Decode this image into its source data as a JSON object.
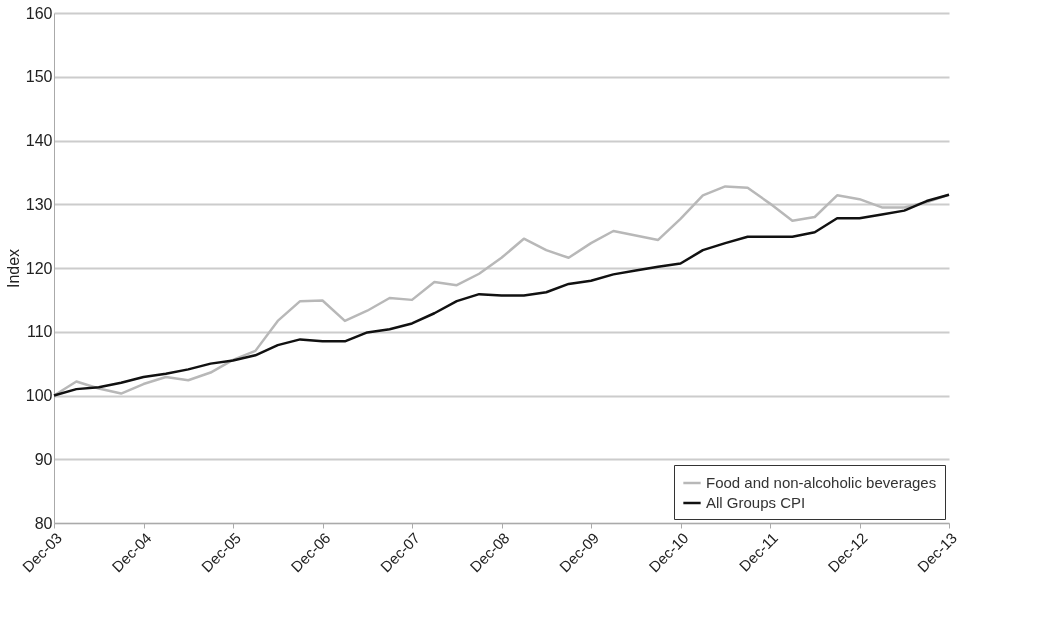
{
  "chart_data": {
    "type": "line",
    "ylabel": "Index",
    "categories": [
      "Dec-03",
      null,
      null,
      null,
      "Dec-04",
      null,
      null,
      null,
      "Dec-05",
      null,
      null,
      null,
      "Dec-06",
      null,
      null,
      null,
      "Dec-07",
      null,
      null,
      null,
      "Dec-08",
      null,
      null,
      null,
      "Dec-09",
      null,
      null,
      null,
      "Dec-10",
      null,
      null,
      null,
      "Dec-11",
      null,
      null,
      null,
      "Dec-12",
      null,
      null,
      null,
      "Dec-13"
    ],
    "series": [
      {
        "name": "Food and non-alcoholic beverages",
        "color": "#b8b8b8",
        "values": [
          100,
          102.2,
          101.1,
          100.3,
          101.8,
          102.9,
          102.4,
          103.6,
          105.6,
          107,
          111.7,
          114.8,
          114.9,
          111.7,
          113.3,
          115.3,
          115,
          117.8,
          117.3,
          119.1,
          121.6,
          124.6,
          122.8,
          121.6,
          123.9,
          125.8,
          125.1,
          124.4,
          127.7,
          131.4,
          132.8,
          132.6,
          130.1,
          127.4,
          128,
          131.4,
          130.8,
          129.5,
          129.5,
          130.3,
          131.5
        ]
      },
      {
        "name": "All Groups CPI",
        "color": "#111111",
        "values": [
          100,
          101,
          101.3,
          102,
          102.9,
          103.4,
          104.1,
          105,
          105.5,
          106.3,
          107.9,
          108.8,
          108.5,
          108.5,
          109.9,
          110.4,
          111.3,
          112.9,
          114.8,
          115.9,
          115.7,
          115.7,
          116.2,
          117.5,
          118,
          119,
          119.6,
          120.2,
          120.7,
          122.8,
          123.9,
          124.9,
          124.9,
          124.9,
          125.6,
          127.8,
          127.8,
          128.4,
          129,
          130.5,
          131.5
        ]
      }
    ],
    "ylim": [
      80,
      160
    ],
    "yticks": [
      80,
      90,
      100,
      110,
      120,
      130,
      140,
      150,
      160
    ],
    "grid": "y",
    "legend": "bottom right",
    "marker": "none",
    "line_style": "solid"
  }
}
